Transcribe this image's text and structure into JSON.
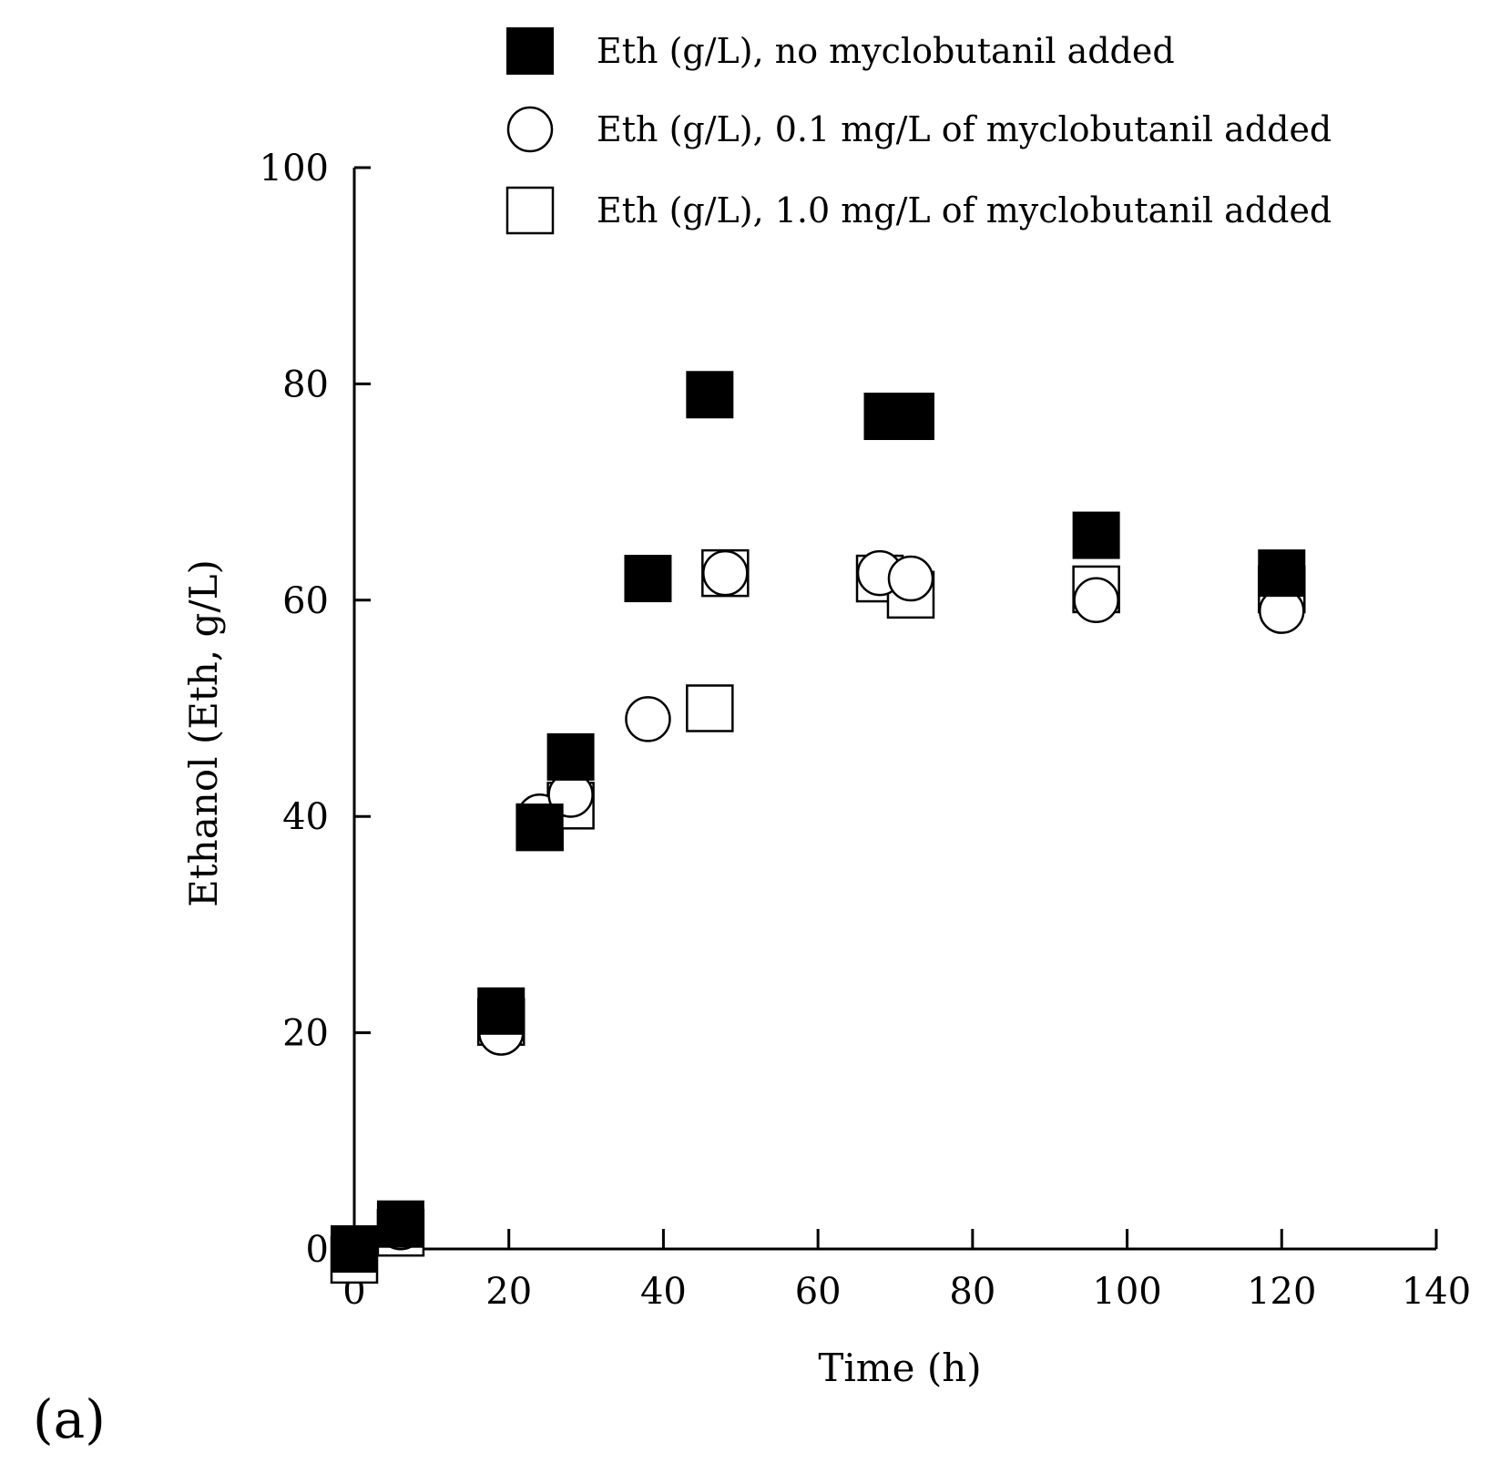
{
  "panel_label": "(a)",
  "chart_data": {
    "type": "scatter",
    "title": "",
    "xlabel": "Time (h)",
    "ylabel": "Ethanol (Eth, g/L)",
    "xlim": [
      0,
      140
    ],
    "ylim": [
      0,
      100
    ],
    "xticks": [
      0,
      20,
      40,
      60,
      80,
      100,
      120,
      140
    ],
    "yticks": [
      0,
      20,
      40,
      60,
      80,
      100
    ],
    "grid": false,
    "legend_position": "top",
    "series": [
      {
        "name": "Eth (g/L), no myclobutanil added",
        "marker": "filled-square",
        "points": [
          {
            "x": 0,
            "y": 0
          },
          {
            "x": 6,
            "y": 2.3
          },
          {
            "x": 19,
            "y": 22
          },
          {
            "x": 24,
            "y": 39
          },
          {
            "x": 28,
            "y": 45.5
          },
          {
            "x": 38,
            "y": 62
          },
          {
            "x": 46,
            "y": 79
          },
          {
            "x": 69,
            "y": 77
          },
          {
            "x": 72,
            "y": 77
          },
          {
            "x": 96,
            "y": 66
          },
          {
            "x": 120,
            "y": 62.5
          }
        ]
      },
      {
        "name": "Eth (g/L), 0.1 mg/L of myclobutanil added",
        "marker": "open-circle",
        "points": [
          {
            "x": 0,
            "y": 0
          },
          {
            "x": 6,
            "y": 2
          },
          {
            "x": 19,
            "y": 20
          },
          {
            "x": 24,
            "y": 40
          },
          {
            "x": 28,
            "y": 42
          },
          {
            "x": 38,
            "y": 49
          },
          {
            "x": 48,
            "y": 62.5
          },
          {
            "x": 68,
            "y": 62.5
          },
          {
            "x": 72,
            "y": 62
          },
          {
            "x": 96,
            "y": 60
          },
          {
            "x": 120,
            "y": 59
          }
        ]
      },
      {
        "name": "Eth (g/L), 1.0 mg/L of myclobutanil added",
        "marker": "open-square",
        "points": [
          {
            "x": 0,
            "y": -1
          },
          {
            "x": 6,
            "y": 1.5
          },
          {
            "x": 19,
            "y": 21
          },
          {
            "x": 24,
            "y": 39
          },
          {
            "x": 28,
            "y": 41
          },
          {
            "x": 46,
            "y": 50
          },
          {
            "x": 48,
            "y": 62.5
          },
          {
            "x": 68,
            "y": 62
          },
          {
            "x": 72,
            "y": 60.5
          },
          {
            "x": 96,
            "y": 61
          },
          {
            "x": 120,
            "y": 61
          }
        ]
      }
    ]
  }
}
